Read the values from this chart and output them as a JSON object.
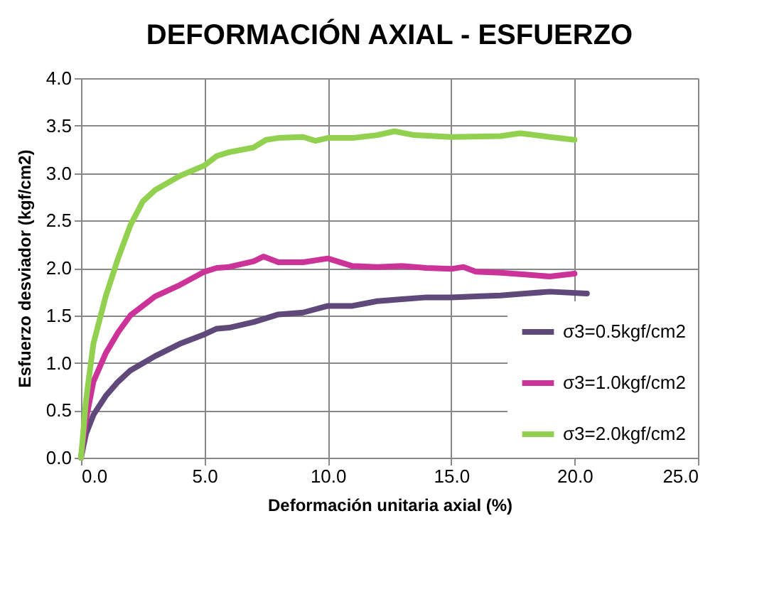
{
  "chart_data": {
    "type": "line",
    "title": "DEFORMACIÓN AXIAL - ESFUERZO",
    "xlabel": "Deformación unitaria axial (%)",
    "ylabel": "Esfuerzo desviador (kgf/cm2)",
    "xlim": [
      0,
      25
    ],
    "xticks": [
      {
        "value": 0,
        "label": "0.0"
      },
      {
        "value": 5,
        "label": "5.0"
      },
      {
        "value": 10,
        "label": "10.0"
      },
      {
        "value": 15,
        "label": "15.0"
      },
      {
        "value": 20,
        "label": "20.0"
      },
      {
        "value": 25,
        "label": "25.0"
      }
    ],
    "ylim": [
      0,
      4
    ],
    "yticks": [
      {
        "value": 0,
        "label": "0.0"
      },
      {
        "value": 0.5,
        "label": "0.5"
      },
      {
        "value": 1,
        "label": "1.0"
      },
      {
        "value": 1.5,
        "label": "1.5"
      },
      {
        "value": 2,
        "label": "2.0"
      },
      {
        "value": 2.5,
        "label": "2.5"
      },
      {
        "value": 3,
        "label": "3.0"
      },
      {
        "value": 3.5,
        "label": "3.5"
      },
      {
        "value": 4,
        "label": "4.0"
      }
    ],
    "grid": true,
    "legend": "bottom right",
    "line_style": "solid",
    "series": [
      {
        "name": "σ3=0.5kgf/cm2",
        "color": "#5f497a",
        "x": [
          0,
          0.2,
          0.5,
          1,
          1.5,
          2,
          3,
          4,
          5,
          5.5,
          6,
          7,
          8,
          9,
          10,
          11,
          12,
          13,
          14,
          15,
          16,
          17,
          18,
          19,
          20.5
        ],
        "values": [
          0,
          0.25,
          0.45,
          0.65,
          0.8,
          0.92,
          1.07,
          1.2,
          1.3,
          1.36,
          1.37,
          1.43,
          1.51,
          1.53,
          1.6,
          1.6,
          1.65,
          1.67,
          1.69,
          1.69,
          1.7,
          1.71,
          1.73,
          1.75,
          1.73
        ]
      },
      {
        "name": "σ3=1.0kgf/cm2",
        "color": "#cc3399",
        "x": [
          0,
          0.2,
          0.5,
          1,
          1.5,
          2,
          3,
          4,
          5,
          5.5,
          6,
          7,
          7.4,
          8,
          9,
          10,
          11,
          12,
          13,
          14,
          15,
          15.5,
          16,
          17,
          18,
          19,
          20
        ],
        "values": [
          0,
          0.4,
          0.8,
          1.1,
          1.32,
          1.5,
          1.7,
          1.82,
          1.96,
          2.0,
          2.01,
          2.07,
          2.12,
          2.06,
          2.06,
          2.1,
          2.02,
          2.01,
          2.02,
          2.0,
          1.99,
          2.01,
          1.96,
          1.95,
          1.93,
          1.91,
          1.94
        ]
      },
      {
        "name": "σ3=2.0kgf/cm2",
        "color": "#92d050",
        "x": [
          0,
          0.2,
          0.5,
          1,
          1.5,
          2,
          2.5,
          3,
          4,
          5,
          5.5,
          6,
          7,
          7.5,
          8,
          9,
          9.5,
          10,
          11,
          12,
          12.7,
          13.5,
          15,
          17,
          17.8,
          19,
          20
        ],
        "values": [
          0,
          0.6,
          1.2,
          1.7,
          2.1,
          2.45,
          2.7,
          2.82,
          2.97,
          3.08,
          3.18,
          3.22,
          3.27,
          3.35,
          3.37,
          3.38,
          3.34,
          3.37,
          3.37,
          3.4,
          3.44,
          3.4,
          3.38,
          3.39,
          3.42,
          3.38,
          3.35
        ]
      }
    ]
  }
}
